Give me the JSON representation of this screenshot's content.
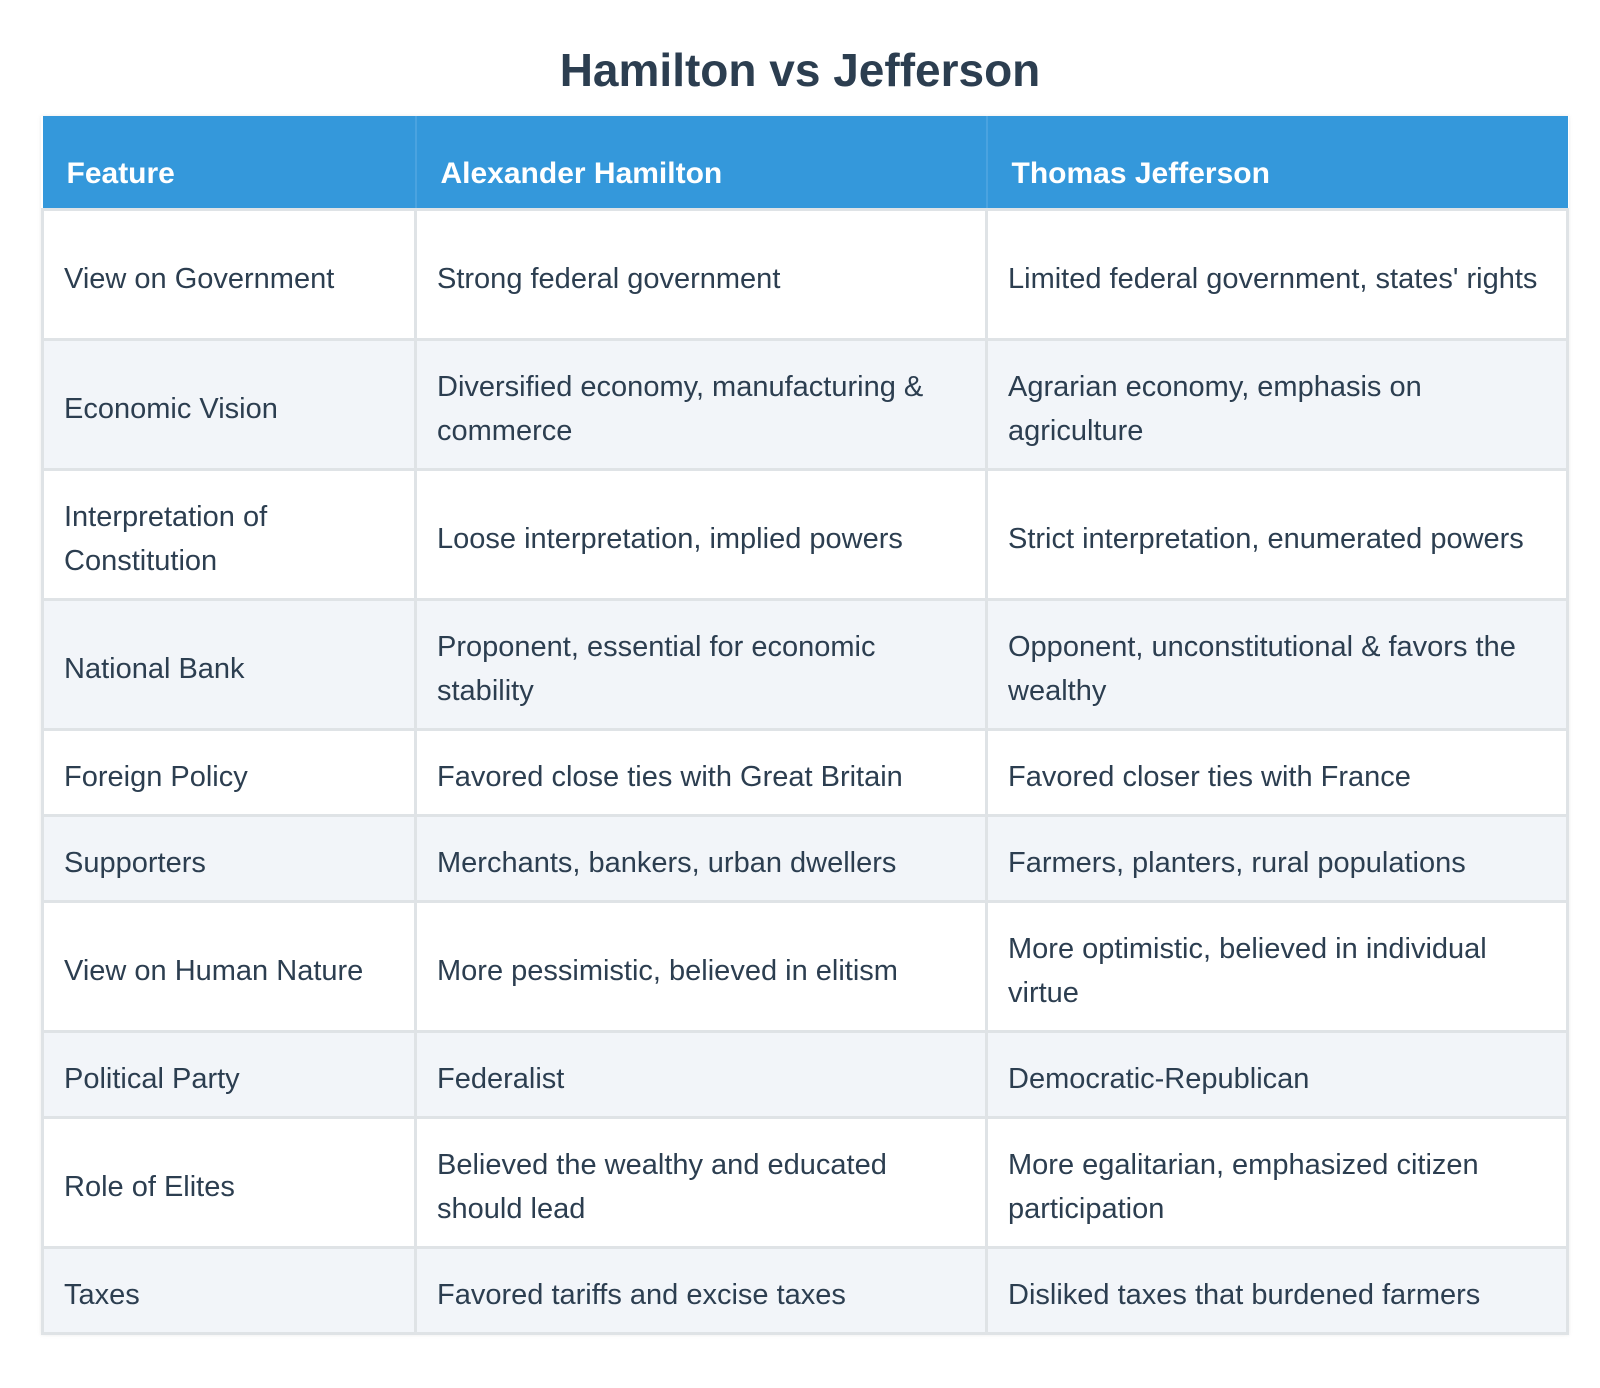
{
  "title": "Hamilton vs Jefferson",
  "colors": {
    "header_bg": "#3498db",
    "title_text": "#2c3e50",
    "row_alt_bg": "#f2f5f9"
  },
  "table": {
    "headers": [
      "Feature",
      "Alexander Hamilton",
      "Thomas Jefferson"
    ],
    "rows": [
      [
        "View on Government",
        "Strong federal government",
        "Limited federal government, states' rights"
      ],
      [
        "Economic Vision",
        "Diversified economy, manufacturing & commerce",
        "Agrarian economy, emphasis on agriculture"
      ],
      [
        "Interpretation of Constitution",
        "Loose interpretation, implied powers",
        "Strict interpretation, enumerated powers"
      ],
      [
        "National Bank",
        "Proponent, essential for economic stability",
        "Opponent, unconstitutional & favors the wealthy"
      ],
      [
        "Foreign Policy",
        "Favored close ties with Great Britain",
        "Favored closer ties with France"
      ],
      [
        "Supporters",
        "Merchants, bankers, urban dwellers",
        "Farmers, planters, rural populations"
      ],
      [
        "View on Human Nature",
        "More pessimistic, believed in elitism",
        "More optimistic, believed in individual virtue"
      ],
      [
        "Political Party",
        "Federalist",
        "Democratic-Republican"
      ],
      [
        "Role of Elites",
        "Believed the wealthy and educated should lead",
        "More egalitarian, emphasized citizen participation"
      ],
      [
        "Taxes",
        "Favored tariffs and excise taxes",
        "Disliked taxes that burdened farmers"
      ]
    ]
  }
}
